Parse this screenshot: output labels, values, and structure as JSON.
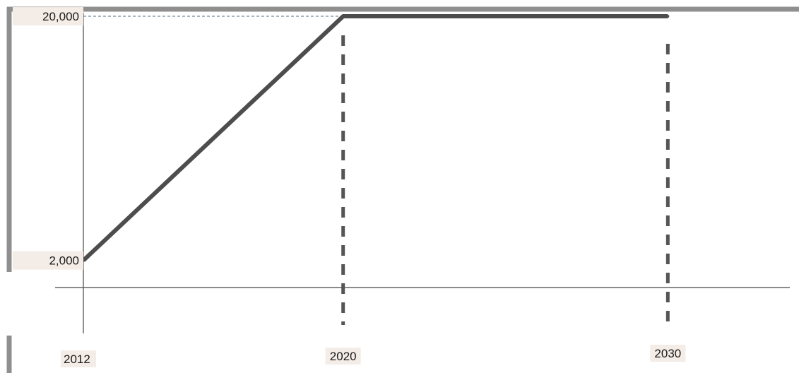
{
  "chart_data": {
    "type": "line",
    "title": "",
    "xlabel": "",
    "ylabel": "",
    "series": [
      {
        "x": [
          2012,
          2020,
          2030
        ],
        "values": [
          2000,
          20000,
          20000
        ]
      }
    ],
    "x_ticks": [
      {
        "value": 2012,
        "label": "2012"
      },
      {
        "value": 2020,
        "label": "2020"
      },
      {
        "value": 2030,
        "label": "2030"
      }
    ],
    "y_ticks": [
      {
        "value": 2000,
        "label": "2,000"
      },
      {
        "value": 20000,
        "label": "20,000"
      }
    ],
    "vertical_markers": [
      2020,
      2030
    ],
    "horizontal_guides": [
      20000
    ],
    "xlim": [
      2012,
      2033.8
    ],
    "ylim": [
      -6300,
      21200
    ],
    "grid": false,
    "legend": "none",
    "colors": {
      "line": "#4d4d4d",
      "markers": "#555555",
      "guide": "#4a6d88",
      "axis": "#555555",
      "frame": "#8f8f8f"
    }
  }
}
